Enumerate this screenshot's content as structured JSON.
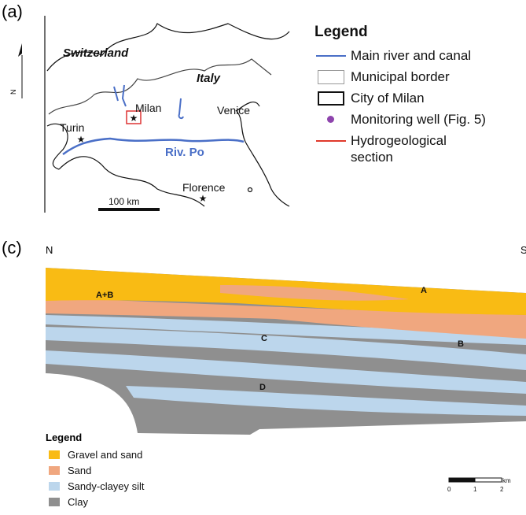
{
  "panel_a": {
    "label": "(a)",
    "map": {
      "north": "N",
      "switzerland": "Switzerland",
      "italy": "Italy",
      "milan": "Milan",
      "venice": "Venice",
      "turin": "Turin",
      "florence": "Florence",
      "river": "Riv. Po",
      "scale": "100 km"
    },
    "legend": {
      "title": "Legend",
      "items": [
        "Main river and canal",
        "Municipal border",
        "City of Milan",
        "Monitoring well (Fig. 5)",
        "Hydrogeological section"
      ]
    }
  },
  "panel_c": {
    "label": "(c)",
    "north": "N",
    "south": "S",
    "units": {
      "ab": "A+B",
      "a": "A",
      "b": "B",
      "c": "C",
      "d": "D"
    },
    "legend": {
      "title": "Legend",
      "items": [
        "Gravel and sand",
        "Sand",
        "Sandy-clayey silt",
        "Clay"
      ]
    },
    "scale": {
      "unit": "km",
      "ticks": [
        "0",
        "1",
        "2"
      ]
    }
  }
}
